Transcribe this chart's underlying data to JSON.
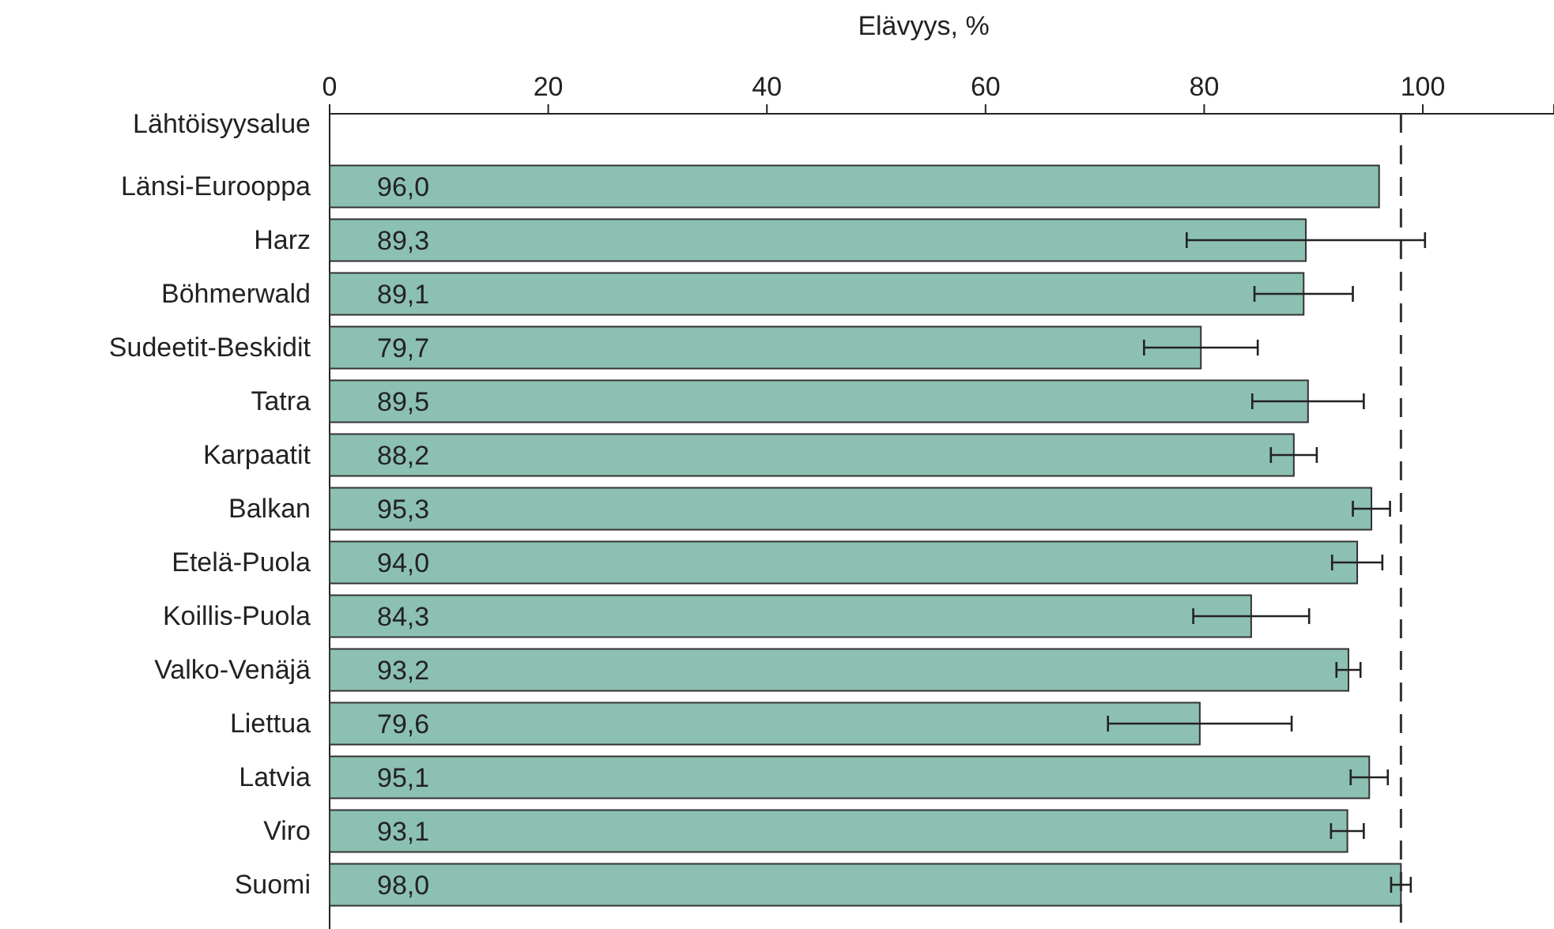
{
  "chart_data": {
    "type": "bar",
    "orientation": "horizontal",
    "xlabel": "Elävyys, %",
    "ylabel": "Lähtöisyysalue",
    "categories": [
      "Länsi-Eurooppa",
      "Harz",
      "Böhmerwald",
      "Sudeetit-Beskidit",
      "Tatra",
      "Karpaatit",
      "Balkan",
      "Etelä-Puola",
      "Koillis-Puola",
      "Valko-Venäjä",
      "Liettua",
      "Latvia",
      "Viro",
      "Suomi"
    ],
    "values": [
      96.0,
      89.3,
      89.1,
      79.7,
      89.5,
      88.2,
      95.3,
      94.0,
      84.3,
      93.2,
      79.6,
      95.1,
      93.1,
      98.0
    ],
    "value_labels": [
      "96,0",
      "89,3",
      "89,1",
      "79,7",
      "89,5",
      "88,2",
      "95,3",
      "94,0",
      "84,3",
      "93,2",
      "79,6",
      "95,1",
      "93,1",
      "98,0"
    ],
    "errors": [
      null,
      10.9,
      4.5,
      5.2,
      5.1,
      2.1,
      1.7,
      2.3,
      5.3,
      1.1,
      8.4,
      1.7,
      1.5,
      0.9
    ],
    "color": "#8cc0b2",
    "xlim": [
      0,
      112
    ],
    "xticks": [
      0,
      20,
      40,
      60,
      80,
      100
    ],
    "ref_lines": [
      {
        "axis": "x",
        "value": 98,
        "line_style": "dashed",
        "color": "#333333"
      }
    ]
  }
}
